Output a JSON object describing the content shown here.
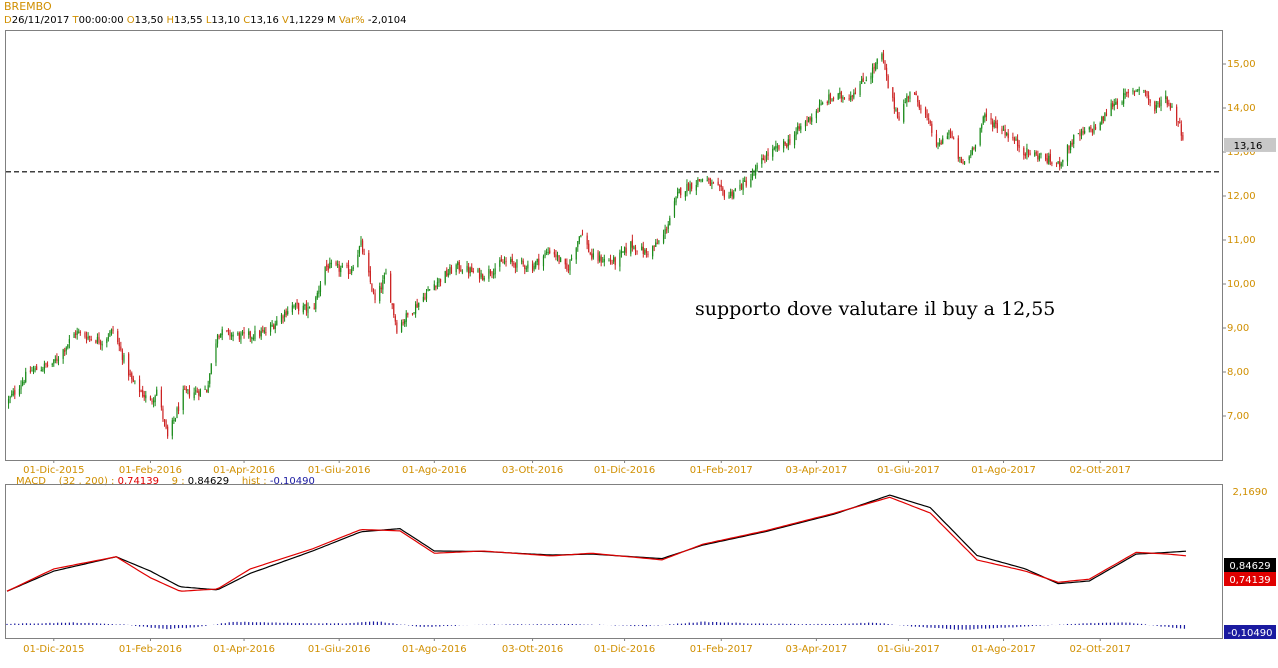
{
  "header": {
    "symbol": "BREMBO",
    "d_label": "D",
    "date": "26/11/2017",
    "t_label": "T",
    "time": "00:00:00",
    "o_label": "O",
    "open": "13,50",
    "h_label": "H",
    "high": "13,55",
    "l_label": "L",
    "low": "13,10",
    "c_label": "C",
    "close": "13,16",
    "v_label": "V",
    "volume": "1,1229 M",
    "var_label": "Var%",
    "var": "-2,0104"
  },
  "indicator_header": {
    "name": "MACD",
    "params": "(32 , 200) :",
    "macd_value": "0,74139",
    "signal_label": "9 :",
    "signal_value": "0,84629",
    "hist_label": "hist :",
    "hist_value": "-0,10490"
  },
  "annotation": "supporto dove valutare il buy a 12,55",
  "colors": {
    "up": "#1a8a1a",
    "down": "#cc2222",
    "macd": "#e00000",
    "signal": "#000000",
    "hist": "#1a1aa0",
    "axis_label": "#d08f00",
    "support": "#000000"
  },
  "chart_data": [
    {
      "type": "candlestick",
      "name": "BREMBO",
      "x_labels": [
        "01-Dic-2015",
        "01-Feb-2016",
        "01-Apr-2016",
        "01-Giu-2016",
        "01-Ago-2016",
        "03-Ott-2016",
        "01-Dic-2016",
        "01-Feb-2017",
        "03-Apr-2017",
        "01-Giu-2017",
        "01-Ago-2017",
        "02-Ott-2017"
      ],
      "x_range": [
        "2015-11-01",
        "2017-11-26"
      ],
      "y_ticks": [
        "15,00",
        "14,00",
        "13,00",
        "12,00",
        "11,00",
        "10,00",
        "9,00",
        "8,00",
        "7,00"
      ],
      "ylim": [
        6.1,
        15.4
      ],
      "last_price_label": "13,16",
      "last_price": 13.16,
      "support_level": 12.55,
      "close_path": [
        [
          "2015-11-01",
          7.3
        ],
        [
          "2015-11-15",
          8.0
        ],
        [
          "2015-12-01",
          8.2
        ],
        [
          "2015-12-15",
          8.9
        ],
        [
          "2016-01-01",
          8.7
        ],
        [
          "2016-01-08",
          8.95
        ],
        [
          "2016-01-20",
          7.8
        ],
        [
          "2016-02-01",
          7.3
        ],
        [
          "2016-02-05",
          7.6
        ],
        [
          "2016-02-12",
          6.5
        ],
        [
          "2016-02-22",
          7.5
        ],
        [
          "2016-03-08",
          7.6
        ],
        [
          "2016-03-15",
          8.9
        ],
        [
          "2016-04-01",
          8.8
        ],
        [
          "2016-04-15",
          8.9
        ],
        [
          "2016-05-01",
          9.5
        ],
        [
          "2016-05-15",
          9.4
        ],
        [
          "2016-05-23",
          10.4
        ],
        [
          "2016-06-08",
          10.3
        ],
        [
          "2016-06-15",
          10.9
        ],
        [
          "2016-06-24",
          9.6
        ],
        [
          "2016-07-01",
          10.2
        ],
        [
          "2016-07-08",
          9.0
        ],
        [
          "2016-07-20",
          9.5
        ],
        [
          "2016-08-01",
          10.0
        ],
        [
          "2016-08-15",
          10.4
        ],
        [
          "2016-09-01",
          10.2
        ],
        [
          "2016-09-15",
          10.5
        ],
        [
          "2016-10-03",
          10.4
        ],
        [
          "2016-10-15",
          10.8
        ],
        [
          "2016-10-25",
          10.3
        ],
        [
          "2016-11-03",
          11.2
        ],
        [
          "2016-11-10",
          10.6
        ],
        [
          "2016-11-25",
          10.5
        ],
        [
          "2016-12-05",
          10.9
        ],
        [
          "2016-12-15",
          10.7
        ],
        [
          "2016-12-25",
          11.0
        ],
        [
          "2017-01-05",
          12.1
        ],
        [
          "2017-01-20",
          12.4
        ],
        [
          "2017-02-05",
          12.0
        ],
        [
          "2017-02-20",
          12.4
        ],
        [
          "2017-03-01",
          12.9
        ],
        [
          "2017-03-15",
          13.2
        ],
        [
          "2017-03-25",
          13.6
        ],
        [
          "2017-04-10",
          14.2
        ],
        [
          "2017-04-25",
          14.3
        ],
        [
          "2017-05-08",
          14.8
        ],
        [
          "2017-05-15",
          15.2
        ],
        [
          "2017-05-20",
          14.3
        ],
        [
          "2017-05-26",
          13.8
        ],
        [
          "2017-06-02",
          14.4
        ],
        [
          "2017-06-10",
          14.0
        ],
        [
          "2017-06-20",
          13.1
        ],
        [
          "2017-06-27",
          13.5
        ],
        [
          "2017-07-05",
          12.7
        ],
        [
          "2017-07-10",
          12.9
        ],
        [
          "2017-07-20",
          13.8
        ],
        [
          "2017-08-01",
          13.5
        ],
        [
          "2017-08-15",
          13.0
        ],
        [
          "2017-08-25",
          12.9
        ],
        [
          "2017-09-05",
          12.7
        ],
        [
          "2017-09-15",
          13.3
        ],
        [
          "2017-10-01",
          13.6
        ],
        [
          "2017-10-10",
          14.1
        ],
        [
          "2017-10-20",
          14.3
        ],
        [
          "2017-10-28",
          14.5
        ],
        [
          "2017-11-01",
          14.3
        ],
        [
          "2017-11-05",
          13.9
        ],
        [
          "2017-11-12",
          14.3
        ],
        [
          "2017-11-20",
          13.8
        ],
        [
          "2017-11-26",
          13.16
        ]
      ]
    },
    {
      "type": "line",
      "name": "MACD",
      "x_labels": [
        "01-Dic-2015",
        "01-Feb-2016",
        "01-Apr-2016",
        "01-Giu-2016",
        "01-Ago-2016",
        "03-Ott-2016",
        "01-Dic-2016",
        "01-Feb-2017",
        "03-Apr-2017",
        "01-Giu-2017",
        "01-Ago-2017",
        "02-Ott-2017"
      ],
      "y_tick_labels": [
        "2,1690",
        "0,84629",
        "0,74139",
        "-0,10490"
      ],
      "ylim": [
        -0.15,
        2.169
      ],
      "series": [
        {
          "name": "MACD",
          "color": "#e00000",
          "points": [
            [
              "2015-11-01",
              -0.05
            ],
            [
              "2015-12-01",
              0.45
            ],
            [
              "2016-01-10",
              0.72
            ],
            [
              "2016-02-01",
              0.25
            ],
            [
              "2016-02-20",
              -0.05
            ],
            [
              "2016-03-15",
              0.0
            ],
            [
              "2016-04-05",
              0.45
            ],
            [
              "2016-05-15",
              0.9
            ],
            [
              "2016-06-15",
              1.33
            ],
            [
              "2016-07-10",
              1.3
            ],
            [
              "2016-08-01",
              0.8
            ],
            [
              "2016-09-01",
              0.85
            ],
            [
              "2016-10-15",
              0.74
            ],
            [
              "2016-11-10",
              0.8
            ],
            [
              "2016-12-25",
              0.65
            ],
            [
              "2017-01-20",
              1.0
            ],
            [
              "2017-03-01",
              1.3
            ],
            [
              "2017-04-15",
              1.7
            ],
            [
              "2017-05-20",
              2.05
            ],
            [
              "2017-06-15",
              1.7
            ],
            [
              "2017-07-15",
              0.65
            ],
            [
              "2017-08-15",
              0.4
            ],
            [
              "2017-09-05",
              0.15
            ],
            [
              "2017-09-25",
              0.22
            ],
            [
              "2017-10-25",
              0.82
            ],
            [
              "2017-11-15",
              0.78
            ],
            [
              "2017-11-26",
              0.74139
            ]
          ]
        },
        {
          "name": "Signal",
          "color": "#000000",
          "points": [
            [
              "2015-11-01",
              -0.05
            ],
            [
              "2015-12-01",
              0.4
            ],
            [
              "2016-01-10",
              0.72
            ],
            [
              "2016-02-01",
              0.4
            ],
            [
              "2016-02-20",
              0.05
            ],
            [
              "2016-03-15",
              -0.02
            ],
            [
              "2016-04-05",
              0.35
            ],
            [
              "2016-05-15",
              0.85
            ],
            [
              "2016-06-15",
              1.28
            ],
            [
              "2016-07-10",
              1.35
            ],
            [
              "2016-08-01",
              0.85
            ],
            [
              "2016-09-01",
              0.84
            ],
            [
              "2016-10-15",
              0.76
            ],
            [
              "2016-11-10",
              0.78
            ],
            [
              "2016-12-25",
              0.68
            ],
            [
              "2017-01-20",
              0.98
            ],
            [
              "2017-03-01",
              1.28
            ],
            [
              "2017-04-15",
              1.68
            ],
            [
              "2017-05-20",
              2.1
            ],
            [
              "2017-06-15",
              1.82
            ],
            [
              "2017-07-15",
              0.75
            ],
            [
              "2017-08-15",
              0.45
            ],
            [
              "2017-09-05",
              0.12
            ],
            [
              "2017-09-25",
              0.18
            ],
            [
              "2017-10-25",
              0.78
            ],
            [
              "2017-11-15",
              0.82
            ],
            [
              "2017-11-26",
              0.84629
            ]
          ]
        },
        {
          "name": "Histogram",
          "color": "#1a1aa0",
          "points": [
            [
              "2015-11-01",
              0.03
            ],
            [
              "2015-12-15",
              0.06
            ],
            [
              "2016-01-15",
              0.01
            ],
            [
              "2016-02-10",
              -0.1
            ],
            [
              "2016-03-01",
              -0.06
            ],
            [
              "2016-03-25",
              0.08
            ],
            [
              "2016-05-01",
              0.05
            ],
            [
              "2016-06-05",
              0.04
            ],
            [
              "2016-06-25",
              0.09
            ],
            [
              "2016-07-25",
              -0.05
            ],
            [
              "2016-09-01",
              0.01
            ],
            [
              "2016-11-01",
              0.02
            ],
            [
              "2016-12-15",
              -0.03
            ],
            [
              "2017-01-20",
              0.08
            ],
            [
              "2017-03-01",
              0.03
            ],
            [
              "2017-04-15",
              0.02
            ],
            [
              "2017-05-10",
              0.06
            ],
            [
              "2017-06-05",
              -0.04
            ],
            [
              "2017-07-05",
              -0.12
            ],
            [
              "2017-08-15",
              -0.04
            ],
            [
              "2017-09-20",
              0.04
            ],
            [
              "2017-10-20",
              0.06
            ],
            [
              "2017-11-26",
              -0.1049
            ]
          ]
        }
      ]
    }
  ]
}
